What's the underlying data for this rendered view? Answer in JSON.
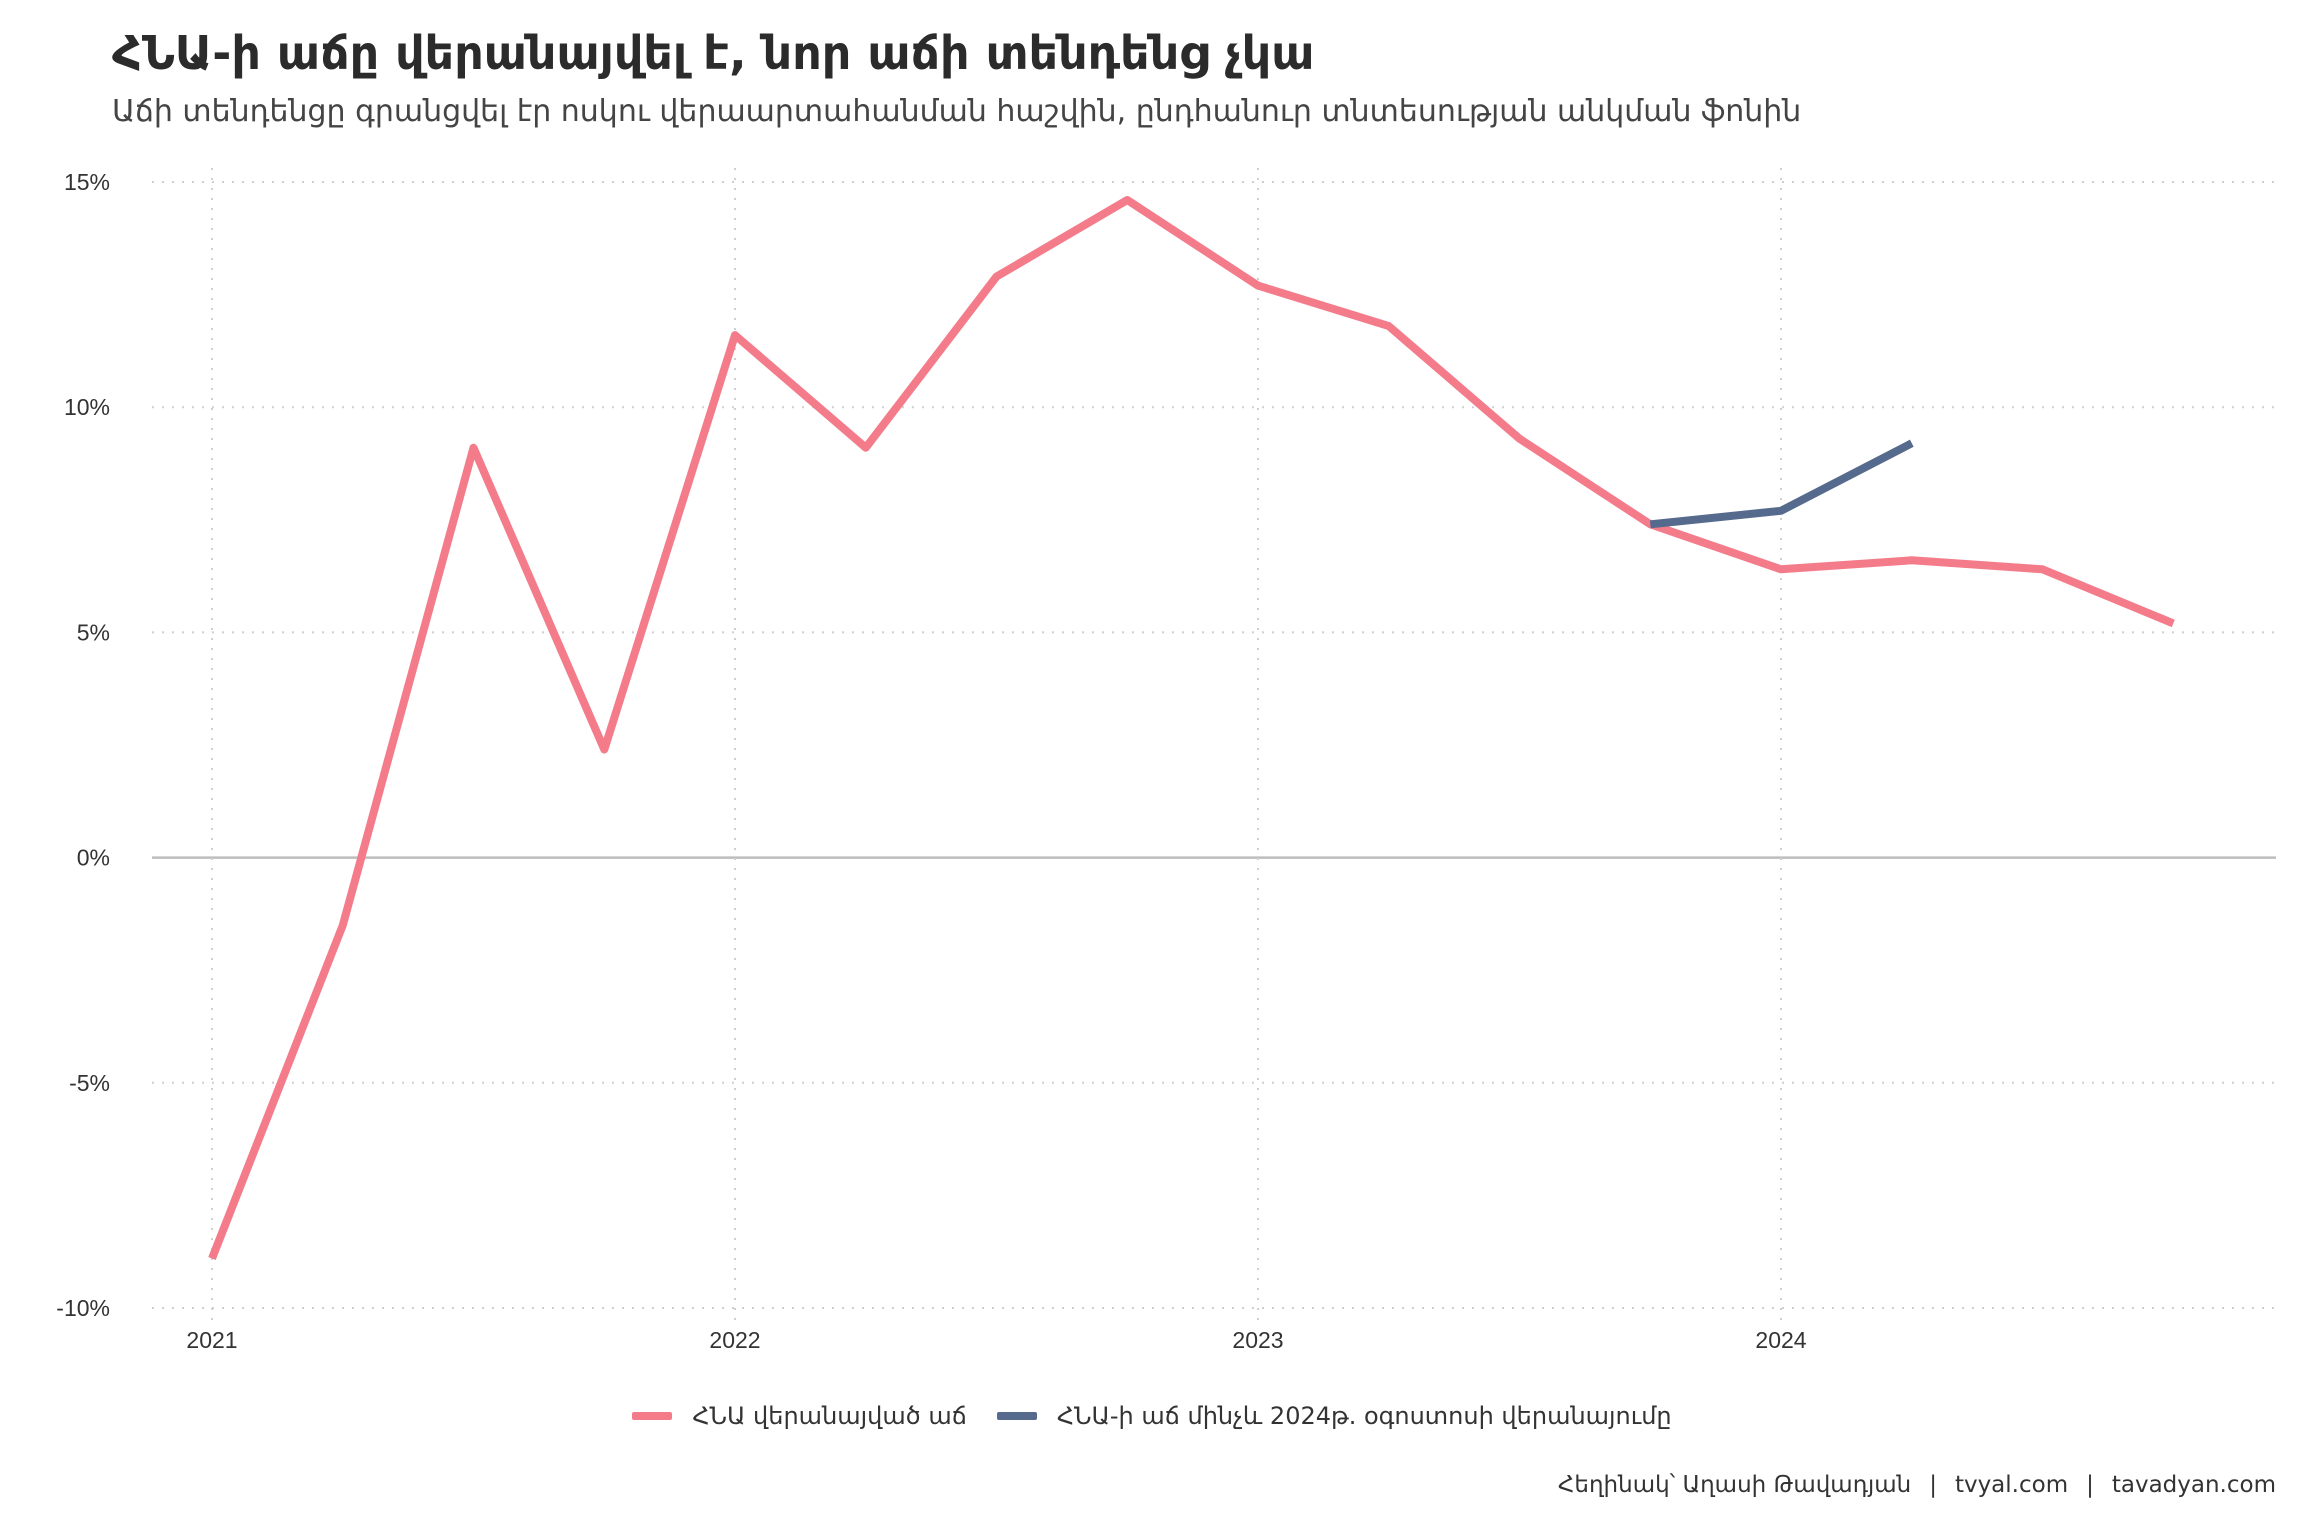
{
  "title": "ՀՆԱ-ի աճը վերանայվել է, նոր աճի տենդենց չկա",
  "subtitle": "Աճի տենդենցը գրանցվել էր ոսկու վերաարտահանման հաշվին, ընդհանուր տնտեսության անկման ֆոնին",
  "caption": {
    "author": "Հեղինակ՝ Աղասի Թավադյան",
    "separator": "|",
    "site1": "tvyal.com",
    "site2": "tavadyan.com"
  },
  "chart_data": {
    "type": "line",
    "x_ticks": [
      "2021",
      "2022",
      "2023",
      "2024"
    ],
    "y_ticks": [
      "-10%",
      "-5%",
      "0%",
      "5%",
      "10%",
      "15%"
    ],
    "ylim": [
      -10,
      15
    ],
    "grid": true,
    "legend_position": "bottom",
    "series": [
      {
        "name": "ՀՆԱ վերանայված աճ",
        "color": "#f47c8a",
        "x": [
          "2021 Q1",
          "2021 Q2",
          "2021 Q3",
          "2021 Q4",
          "2022 Q1",
          "2022 Q2",
          "2022 Q3",
          "2022 Q4",
          "2023 Q1",
          "2023 Q2",
          "2023 Q3",
          "2023 Q4",
          "2024 Q1",
          "2024 Q2",
          "2024 Q3",
          "2024 Q4"
        ],
        "values": [
          -8.9,
          -1.5,
          9.1,
          2.4,
          11.6,
          9.1,
          12.9,
          14.6,
          12.7,
          11.8,
          9.3,
          7.4,
          6.4,
          6.6,
          6.4,
          5.2
        ]
      },
      {
        "name": "ՀՆԱ-ի աճ մինչև 2024թ. օգոստոսի վերանայումը",
        "color": "#566a8e",
        "x": [
          "2023 Q4",
          "2024 Q1",
          "2024 Q2"
        ],
        "values": [
          7.4,
          7.7,
          9.2
        ]
      }
    ]
  }
}
